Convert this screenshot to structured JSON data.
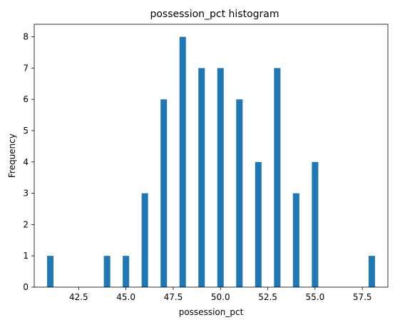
{
  "chart_data": {
    "type": "bar",
    "title": "possession_pct histogram",
    "xlabel": "possession_pct",
    "ylabel": "Frequency",
    "bar_color": "#1f77b4",
    "xlim": [
      40.15,
      58.85
    ],
    "ylim": [
      0,
      8.4
    ],
    "x_ticks": [
      42.5,
      45.0,
      47.5,
      50.0,
      52.5,
      55.0,
      57.5
    ],
    "x_tick_labels": [
      "42.5",
      "45.0",
      "47.5",
      "50.0",
      "52.5",
      "55.0",
      "57.5"
    ],
    "y_ticks": [
      0,
      1,
      2,
      3,
      4,
      5,
      6,
      7,
      8
    ],
    "y_tick_labels": [
      "0",
      "1",
      "2",
      "3",
      "4",
      "5",
      "6",
      "7",
      "8"
    ],
    "bin_width": 0.34,
    "bins": [
      {
        "x": 41,
        "count": 1
      },
      {
        "x": 44,
        "count": 1
      },
      {
        "x": 45,
        "count": 1
      },
      {
        "x": 46,
        "count": 3
      },
      {
        "x": 47,
        "count": 6
      },
      {
        "x": 48,
        "count": 8
      },
      {
        "x": 49,
        "count": 7
      },
      {
        "x": 50,
        "count": 7
      },
      {
        "x": 51,
        "count": 6
      },
      {
        "x": 52,
        "count": 4
      },
      {
        "x": 53,
        "count": 7
      },
      {
        "x": 54,
        "count": 3
      },
      {
        "x": 55,
        "count": 4
      },
      {
        "x": 58,
        "count": 1
      }
    ],
    "grid": false,
    "legend": "none"
  }
}
